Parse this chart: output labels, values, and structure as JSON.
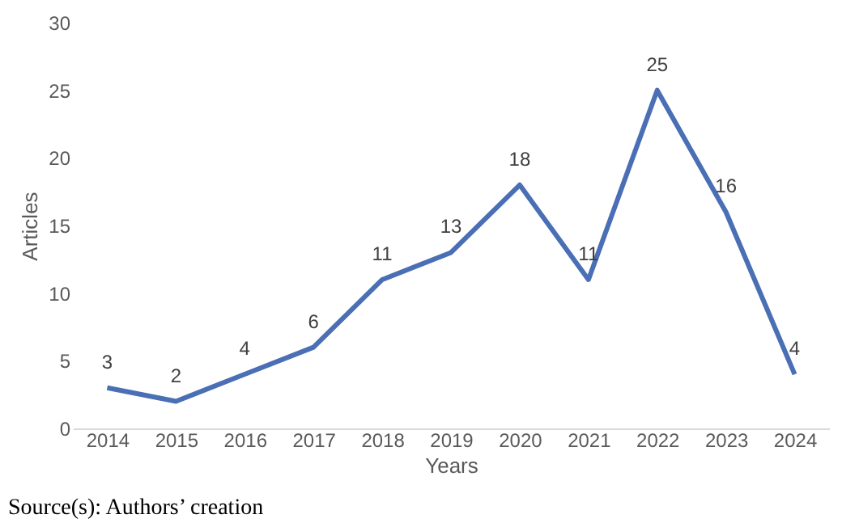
{
  "chart_data": {
    "type": "line",
    "categories": [
      "2014",
      "2015",
      "2016",
      "2017",
      "2018",
      "2019",
      "2020",
      "2021",
      "2022",
      "2023",
      "2024"
    ],
    "series": [
      {
        "color": "#4a6fb5",
        "values": [
          3,
          2,
          4,
          6,
          11,
          13,
          18,
          11,
          25,
          16,
          4
        ]
      }
    ],
    "xlabel": "Years",
    "ylabel": "Articles",
    "ylim": [
      0,
      30
    ],
    "yticks": [
      0,
      5,
      10,
      15,
      20,
      25,
      30
    ],
    "data_labels": true,
    "grid": false,
    "marker": "none",
    "line_style": "solid",
    "annotations": [
      "Source(s): Authors’ creation"
    ]
  }
}
